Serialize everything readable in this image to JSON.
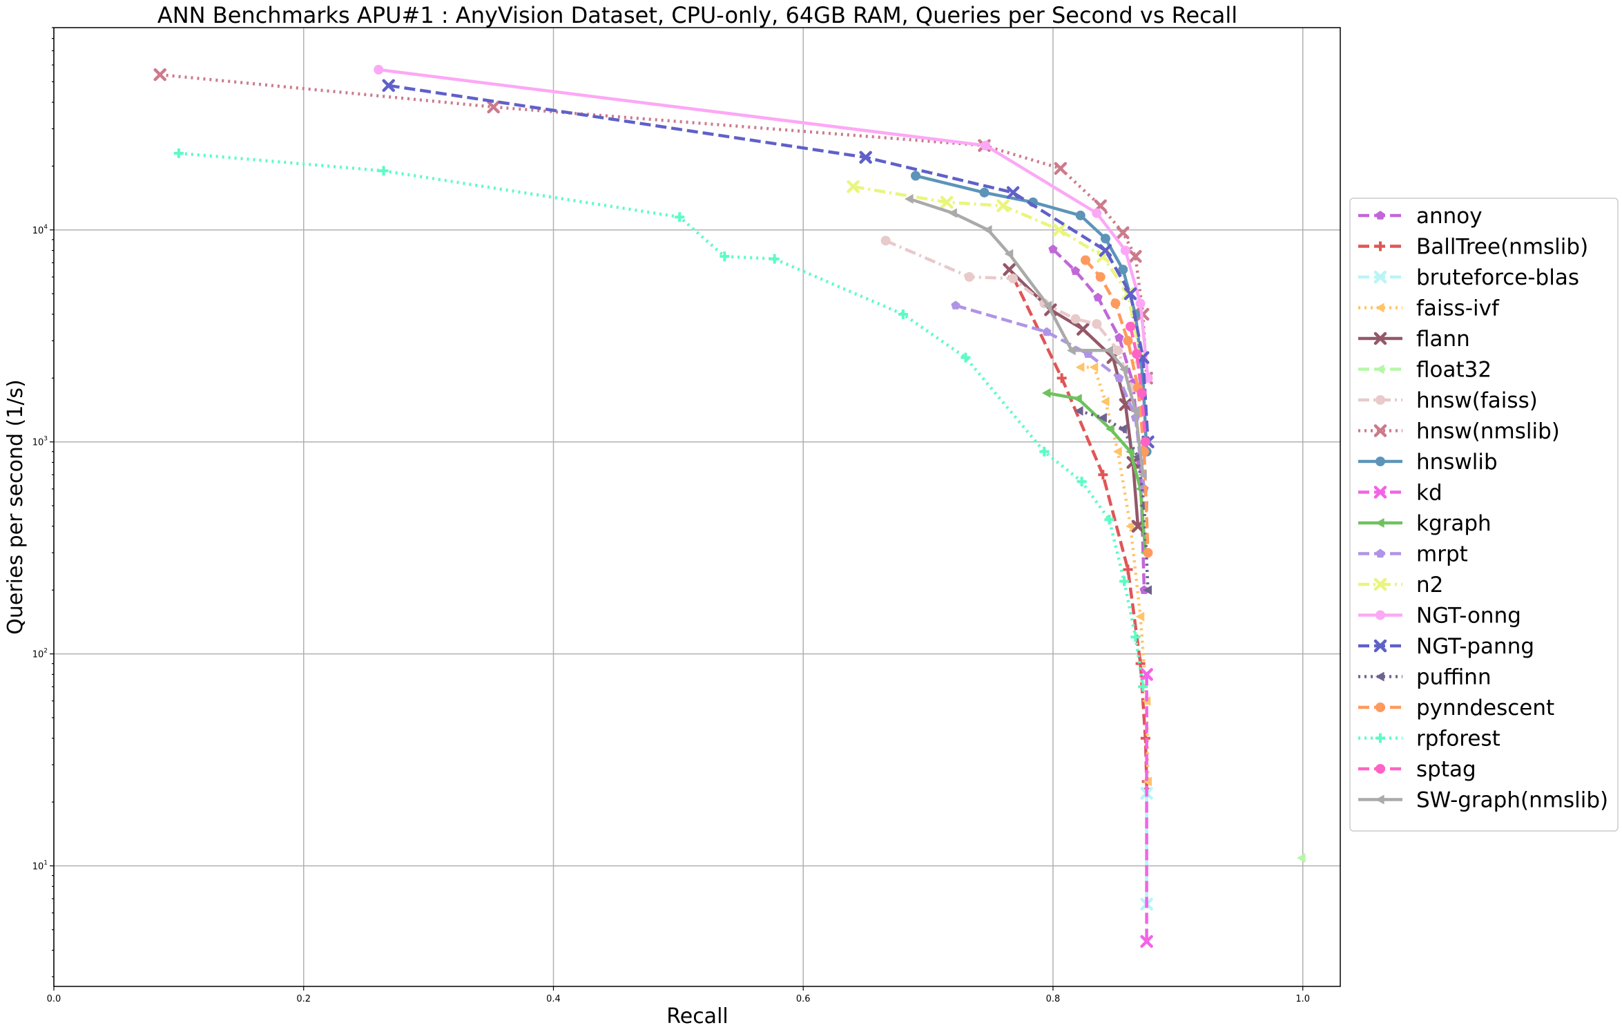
{
  "chart_data": {
    "type": "line",
    "title": "ANN Benchmarks APU#1 : AnyVision Dataset, CPU-only, 64GB RAM, Queries per Second vs Recall",
    "xlabel": "Recall",
    "ylabel": "Queries per second (1/s)",
    "xlim": [
      0.0,
      1.03
    ],
    "ylim": [
      2.7,
      90000
    ],
    "yscale": "log",
    "grid": true,
    "legend_position": "right, outside plot",
    "x_ticks": [
      "0.0",
      "0.2",
      "0.4",
      "0.6",
      "0.8",
      "1.0"
    ],
    "x_tick_values": [
      0.0,
      0.2,
      0.4,
      0.6,
      0.8,
      1.0
    ],
    "y_tick_values": [
      10,
      100,
      1000,
      10000
    ],
    "y_tick_labels": [
      {
        "base": "10",
        "exp": "1"
      },
      {
        "base": "10",
        "exp": "2"
      },
      {
        "base": "10",
        "exp": "3"
      },
      {
        "base": "10",
        "exp": "4"
      }
    ],
    "series": [
      {
        "name": "annoy",
        "color": "#c167d9",
        "dash": "dashed",
        "marker": "pentagon",
        "x": [
          0.8,
          0.818,
          0.836,
          0.853,
          0.864,
          0.87,
          0.873
        ],
        "y": [
          8100,
          6400,
          4800,
          3100,
          1900,
          800,
          200
        ]
      },
      {
        "name": "BallTree(nmslib)",
        "color": "#e05656",
        "dash": "dashed",
        "marker": "plus",
        "x": [
          0.768,
          0.807,
          0.84,
          0.86,
          0.87,
          0.874,
          0.875,
          0.875
        ],
        "y": [
          6000,
          2000,
          700,
          250,
          90,
          40,
          25,
          23
        ]
      },
      {
        "name": "bruteforce-blas",
        "color": "#b8f5f7",
        "dash": "dashed",
        "marker": "x",
        "x": [
          0.875,
          0.875
        ],
        "y": [
          22,
          6.6
        ]
      },
      {
        "name": "faiss-ivf",
        "color": "#ffc467",
        "dash": "dotted",
        "marker": "triangle-left",
        "x": [
          0.822,
          0.833,
          0.842,
          0.852,
          0.862,
          0.87,
          0.875,
          0.876
        ],
        "y": [
          2250,
          2250,
          1550,
          900,
          400,
          150,
          60,
          25
        ]
      },
      {
        "name": "flann",
        "color": "#945868",
        "dash": "solid",
        "marker": "x",
        "x": [
          0.765,
          0.798,
          0.824,
          0.848,
          0.858,
          0.864,
          0.868
        ],
        "y": [
          6500,
          4200,
          3400,
          2500,
          1500,
          800,
          400
        ]
      },
      {
        "name": "float32",
        "color": "#b5f7a7",
        "dash": "dashed",
        "marker": "triangle-left",
        "x": [
          0.999
        ],
        "y": [
          10.9
        ]
      },
      {
        "name": "hnsw(faiss)",
        "color": "#e8cacb",
        "dash": "dashdot",
        "marker": "circle",
        "x": [
          0.666,
          0.733,
          0.768,
          0.793,
          0.818,
          0.835,
          0.852,
          0.863
        ],
        "y": [
          8900,
          6000,
          5900,
          4500,
          3800,
          3600,
          2700,
          1800
        ]
      },
      {
        "name": "hnsw(nmslib)",
        "color": "#cc7a8c",
        "dash": "dotted",
        "marker": "x",
        "x": [
          0.085,
          0.352,
          0.745,
          0.806,
          0.838,
          0.856,
          0.866,
          0.872,
          0.875
        ],
        "y": [
          54000,
          38000,
          25000,
          19500,
          13000,
          9700,
          7500,
          4000,
          2000
        ]
      },
      {
        "name": "hnswlib",
        "color": "#5c94b8",
        "dash": "solid",
        "marker": "circle",
        "x": [
          0.69,
          0.745,
          0.784,
          0.822,
          0.842,
          0.856,
          0.866,
          0.872,
          0.875
        ],
        "y": [
          18000,
          15000,
          13500,
          11700,
          9100,
          6500,
          4000,
          2000,
          900
        ]
      },
      {
        "name": "kd",
        "color": "#f264e6",
        "dash": "dashed",
        "marker": "x",
        "x": [
          0.875,
          0.875
        ],
        "y": [
          80,
          4.4
        ]
      },
      {
        "name": "kgraph",
        "color": "#6ec25e",
        "dash": "solid",
        "marker": "triangle-left",
        "x": [
          0.795,
          0.82,
          0.846,
          0.862,
          0.87,
          0.874
        ],
        "y": [
          1700,
          1600,
          1150,
          900,
          600,
          300
        ]
      },
      {
        "name": "mrpt",
        "color": "#af94e6",
        "dash": "dashed",
        "marker": "pentagon",
        "x": [
          0.722,
          0.795,
          0.828,
          0.853,
          0.866,
          0.873
        ],
        "y": [
          4400,
          3300,
          2600,
          2000,
          1300,
          600
        ]
      },
      {
        "name": "n2",
        "color": "#e9f57d",
        "dash": "dashdot",
        "marker": "x",
        "x": [
          0.64,
          0.715,
          0.76,
          0.805,
          0.84,
          0.86,
          0.87
        ],
        "y": [
          16000,
          13500,
          13000,
          10000,
          7500,
          5000,
          2500
        ]
      },
      {
        "name": "NGT-onng",
        "color": "#fca8f6",
        "dash": "solid",
        "marker": "circle",
        "x": [
          0.26,
          0.746,
          0.835,
          0.858,
          0.87,
          0.876
        ],
        "y": [
          57000,
          25000,
          12000,
          8000,
          4500,
          2000
        ]
      },
      {
        "name": "NGT-panng",
        "color": "#6060c9",
        "dash": "dashed",
        "marker": "x",
        "x": [
          0.268,
          0.65,
          0.768,
          0.842,
          0.862,
          0.872,
          0.876
        ],
        "y": [
          48000,
          22000,
          15000,
          8000,
          5000,
          2500,
          1000
        ]
      },
      {
        "name": "puffinn",
        "color": "#6e6390",
        "dash": "dotted",
        "marker": "triangle-left",
        "x": [
          0.821,
          0.84,
          0.856,
          0.868,
          0.873,
          0.876
        ],
        "y": [
          1400,
          1300,
          1150,
          850,
          500,
          200
        ]
      },
      {
        "name": "pynndescent",
        "color": "#ff9a5e",
        "dash": "dashed",
        "marker": "circle",
        "x": [
          0.826,
          0.838,
          0.85,
          0.86,
          0.868,
          0.873,
          0.876
        ],
        "y": [
          7200,
          6000,
          4500,
          3000,
          1800,
          900,
          300
        ]
      },
      {
        "name": "rpforest",
        "color": "#5cfcc4",
        "dash": "dotted",
        "marker": "plus",
        "x": [
          0.1,
          0.264,
          0.501,
          0.537,
          0.577,
          0.68,
          0.73,
          0.793,
          0.823,
          0.845,
          0.857,
          0.866,
          0.872
        ],
        "y": [
          23000,
          19000,
          11500,
          7500,
          7300,
          4000,
          2500,
          900,
          650,
          430,
          220,
          120,
          70
        ]
      },
      {
        "name": "sptag",
        "color": "#ff63c4",
        "dash": "dashed",
        "marker": "circle",
        "x": [
          0.862,
          0.867,
          0.871,
          0.874
        ],
        "y": [
          3500,
          2600,
          1700,
          1000
        ]
      },
      {
        "name": "SW-graph(nmslib)",
        "color": "#aaaaaa",
        "dash": "solid",
        "marker": "triangle-left",
        "x": [
          0.685,
          0.72,
          0.748,
          0.765,
          0.796,
          0.815,
          0.845,
          0.857,
          0.866,
          0.872
        ],
        "y": [
          14000,
          12000,
          10000,
          7700,
          4400,
          2700,
          2700,
          2200,
          1400,
          700
        ]
      }
    ]
  }
}
